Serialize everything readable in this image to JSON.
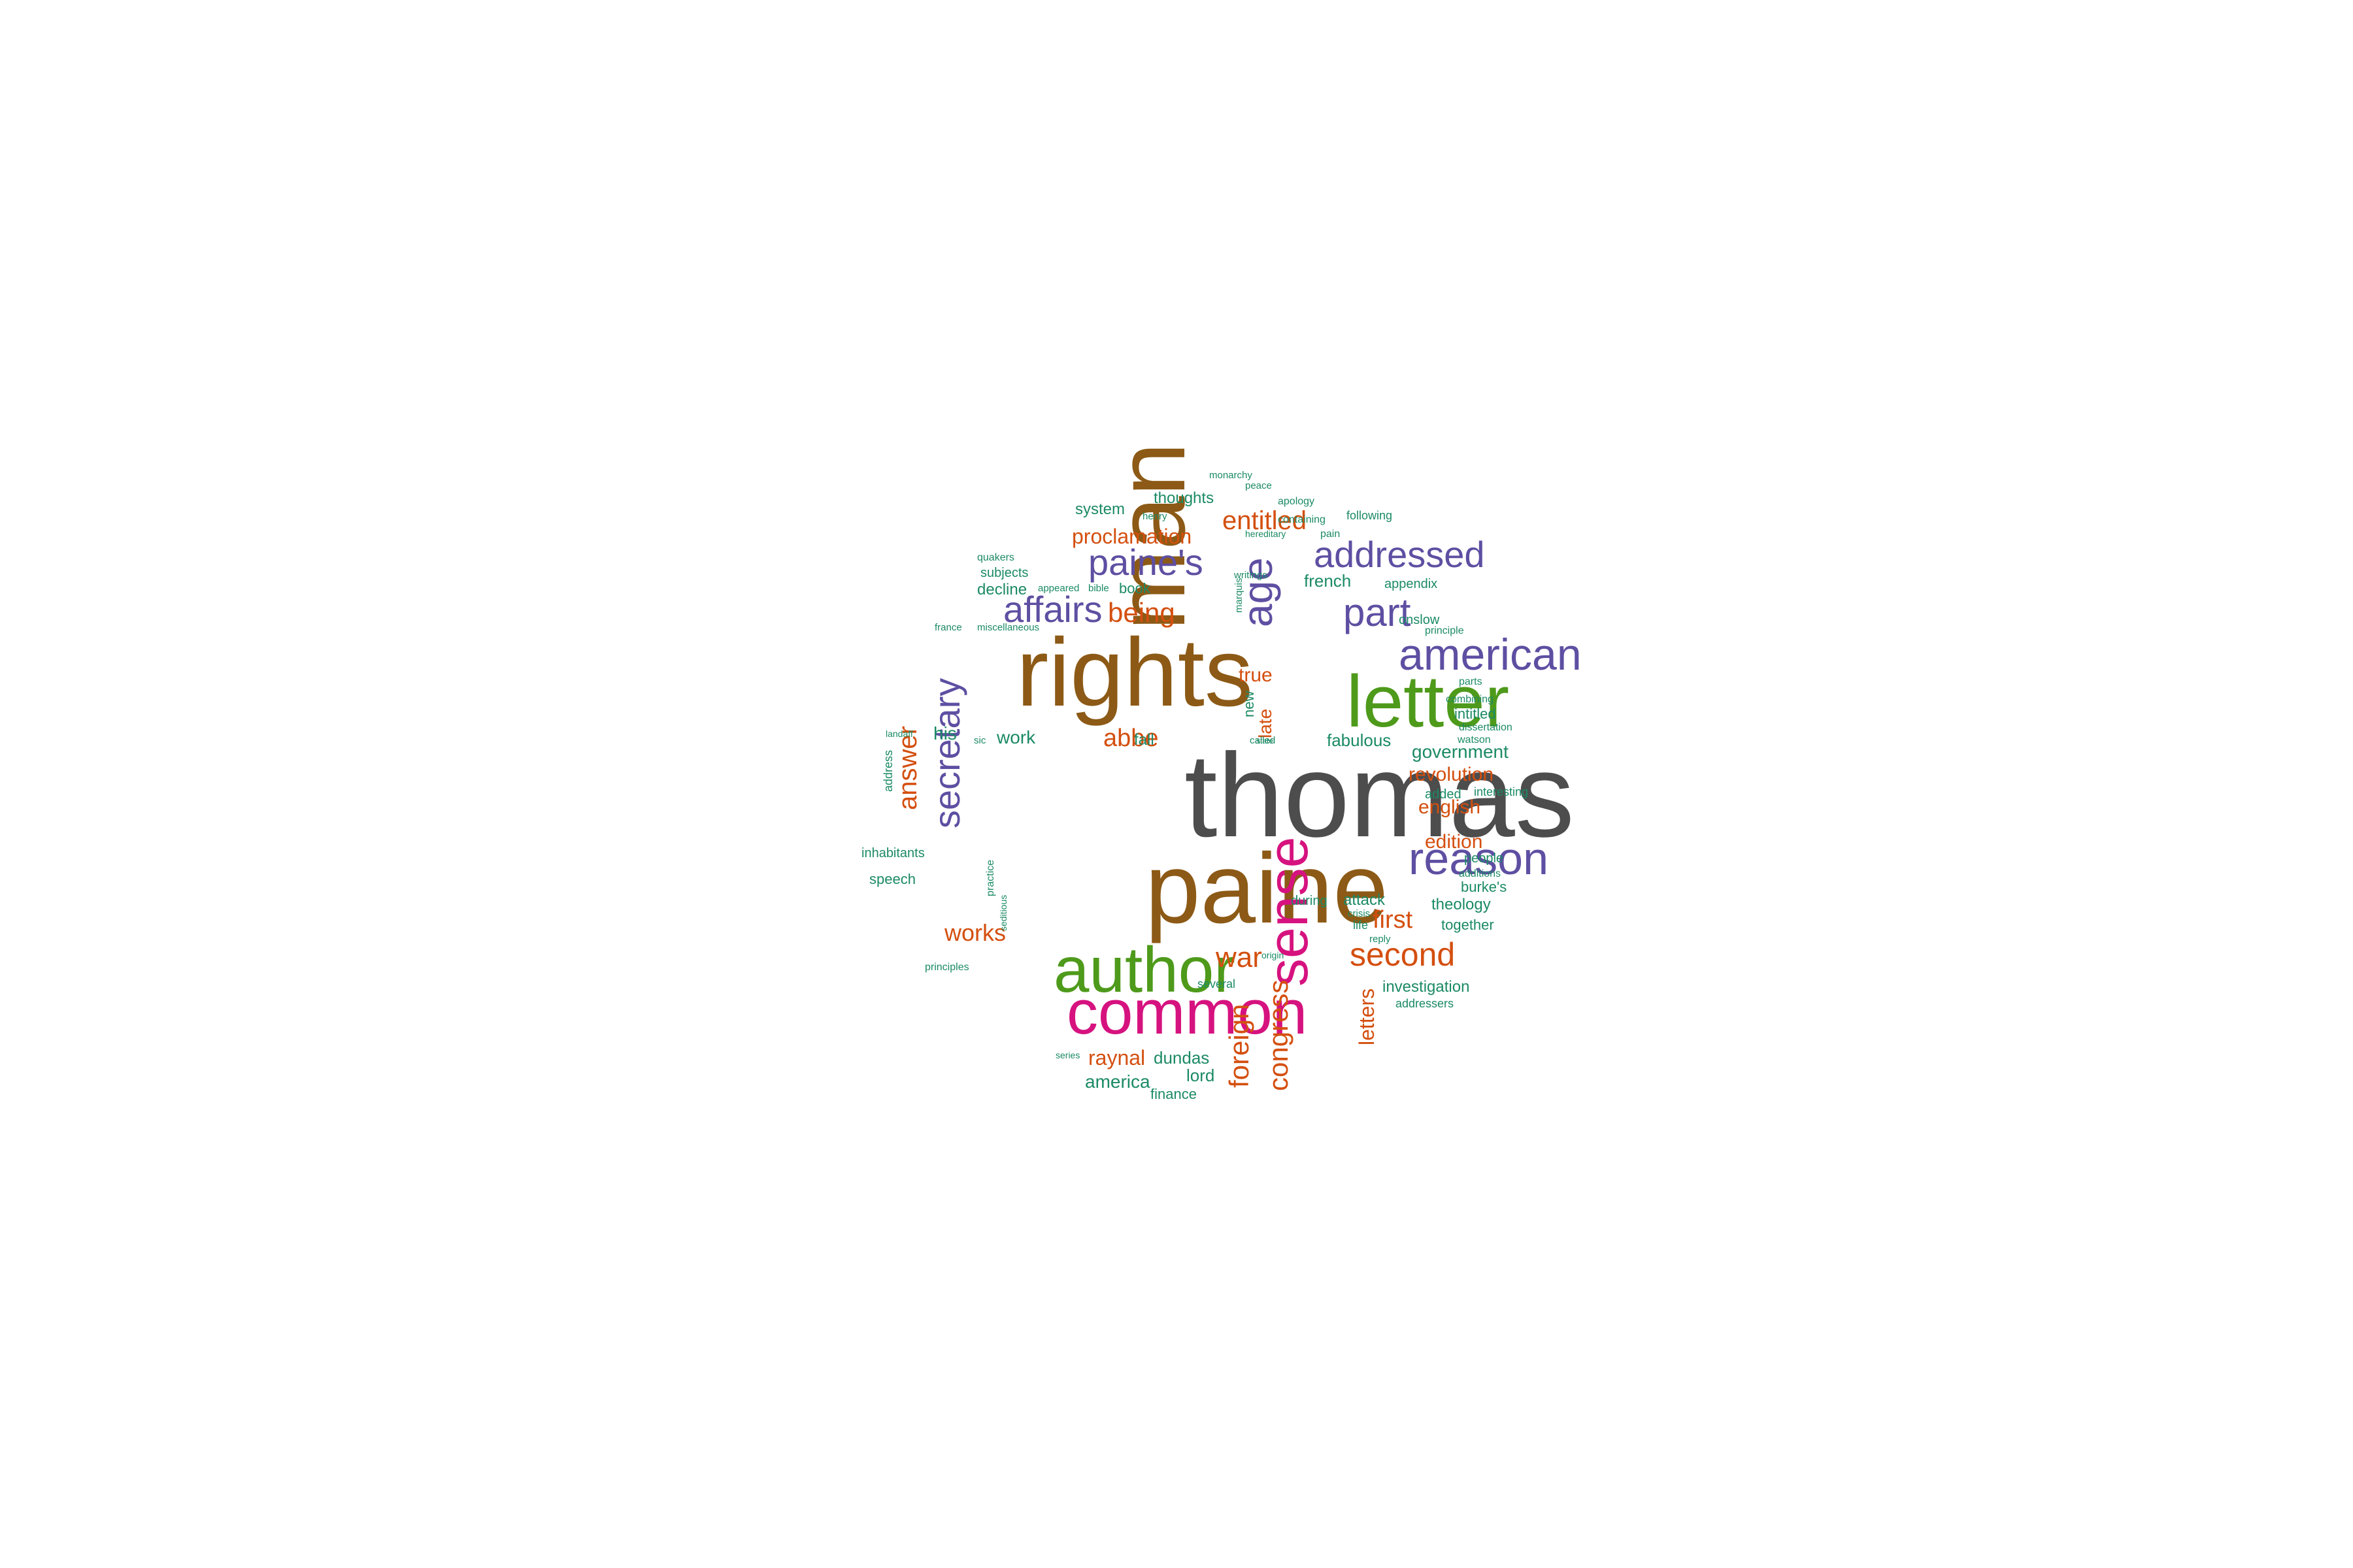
{
  "palette": {
    "gray": "#4d4d4d",
    "brown": "#8c5a16",
    "green": "#4e9a1b",
    "purple": "#5e4fa2",
    "magenta": "#d6127f",
    "orange": "#d44f0f",
    "teal": "#1b8a65"
  },
  "words": [
    {
      "text": "thomas",
      "color": "gray"
    },
    {
      "text": "paine",
      "color": "brown"
    },
    {
      "text": "rights",
      "color": "brown"
    },
    {
      "text": "man",
      "color": "brown"
    },
    {
      "text": "letter",
      "color": "green"
    },
    {
      "text": "author",
      "color": "green"
    },
    {
      "text": "common",
      "color": "magenta"
    },
    {
      "text": "sense",
      "color": "magenta"
    },
    {
      "text": "reason",
      "color": "purple"
    },
    {
      "text": "american",
      "color": "purple"
    },
    {
      "text": "addressed",
      "color": "purple"
    },
    {
      "text": "part",
      "color": "purple"
    },
    {
      "text": "age",
      "color": "purple"
    },
    {
      "text": "paine's",
      "color": "purple"
    },
    {
      "text": "affairs",
      "color": "purple"
    },
    {
      "text": "secretary",
      "color": "purple"
    },
    {
      "text": "entitled",
      "color": "orange"
    },
    {
      "text": "proclamation",
      "color": "orange"
    },
    {
      "text": "being",
      "color": "orange"
    },
    {
      "text": "abbe",
      "color": "orange"
    },
    {
      "text": "answer",
      "color": "orange"
    },
    {
      "text": "works",
      "color": "orange"
    },
    {
      "text": "war",
      "color": "orange"
    },
    {
      "text": "second",
      "color": "orange"
    },
    {
      "text": "first",
      "color": "orange"
    },
    {
      "text": "foreign",
      "color": "orange"
    },
    {
      "text": "congress",
      "color": "orange"
    },
    {
      "text": "letters",
      "color": "orange"
    },
    {
      "text": "raynal",
      "color": "orange"
    },
    {
      "text": "revolution",
      "color": "orange"
    },
    {
      "text": "english",
      "color": "orange"
    },
    {
      "text": "edition",
      "color": "orange"
    },
    {
      "text": "true",
      "color": "orange"
    },
    {
      "text": "late",
      "color": "orange"
    },
    {
      "text": "system",
      "color": "teal"
    },
    {
      "text": "thoughts",
      "color": "teal"
    },
    {
      "text": "monarchy",
      "color": "teal"
    },
    {
      "text": "peace",
      "color": "teal"
    },
    {
      "text": "apology",
      "color": "teal"
    },
    {
      "text": "containing",
      "color": "teal"
    },
    {
      "text": "following",
      "color": "teal"
    },
    {
      "text": "henry",
      "color": "teal"
    },
    {
      "text": "hereditary",
      "color": "teal"
    },
    {
      "text": "pain",
      "color": "teal"
    },
    {
      "text": "quakers",
      "color": "teal"
    },
    {
      "text": "subjects",
      "color": "teal"
    },
    {
      "text": "writings",
      "color": "teal"
    },
    {
      "text": "french",
      "color": "teal"
    },
    {
      "text": "appendix",
      "color": "teal"
    },
    {
      "text": "decline",
      "color": "teal"
    },
    {
      "text": "appeared",
      "color": "teal"
    },
    {
      "text": "bible",
      "color": "teal"
    },
    {
      "text": "book",
      "color": "teal"
    },
    {
      "text": "france",
      "color": "teal"
    },
    {
      "text": "miscellaneous",
      "color": "teal"
    },
    {
      "text": "marquis",
      "color": "teal"
    },
    {
      "text": "onslow",
      "color": "teal"
    },
    {
      "text": "principle",
      "color": "teal"
    },
    {
      "text": "parts",
      "color": "teal"
    },
    {
      "text": "combining",
      "color": "teal"
    },
    {
      "text": "intitled",
      "color": "teal"
    },
    {
      "text": "dissertation",
      "color": "teal"
    },
    {
      "text": "watson",
      "color": "teal"
    },
    {
      "text": "new",
      "color": "teal"
    },
    {
      "text": "called",
      "color": "teal"
    },
    {
      "text": "state",
      "color": "teal"
    },
    {
      "text": "fabulous",
      "color": "teal"
    },
    {
      "text": "government",
      "color": "teal"
    },
    {
      "text": "his",
      "color": "teal"
    },
    {
      "text": "sic",
      "color": "teal"
    },
    {
      "text": "work",
      "color": "teal"
    },
    {
      "text": "fall",
      "color": "teal"
    },
    {
      "text": "landaff",
      "color": "teal"
    },
    {
      "text": "address",
      "color": "teal"
    },
    {
      "text": "interesting",
      "color": "teal"
    },
    {
      "text": "added",
      "color": "teal"
    },
    {
      "text": "inhabitants",
      "color": "teal"
    },
    {
      "text": "speech",
      "color": "teal"
    },
    {
      "text": "practice",
      "color": "teal"
    },
    {
      "text": "seditious",
      "color": "teal"
    },
    {
      "text": "people",
      "color": "teal"
    },
    {
      "text": "additions",
      "color": "teal"
    },
    {
      "text": "burke's",
      "color": "teal"
    },
    {
      "text": "theology",
      "color": "teal"
    },
    {
      "text": "during",
      "color": "teal"
    },
    {
      "text": "attack",
      "color": "teal"
    },
    {
      "text": "crisis",
      "color": "teal"
    },
    {
      "text": "life",
      "color": "teal"
    },
    {
      "text": "reply",
      "color": "teal"
    },
    {
      "text": "together",
      "color": "teal"
    },
    {
      "text": "principles",
      "color": "teal"
    },
    {
      "text": "origin",
      "color": "teal"
    },
    {
      "text": "several",
      "color": "teal"
    },
    {
      "text": "investigation",
      "color": "teal"
    },
    {
      "text": "addressers",
      "color": "teal"
    },
    {
      "text": "series",
      "color": "teal"
    },
    {
      "text": "dundas",
      "color": "teal"
    },
    {
      "text": "america",
      "color": "teal"
    },
    {
      "text": "lord",
      "color": "teal"
    },
    {
      "text": "finance",
      "color": "teal"
    }
  ]
}
